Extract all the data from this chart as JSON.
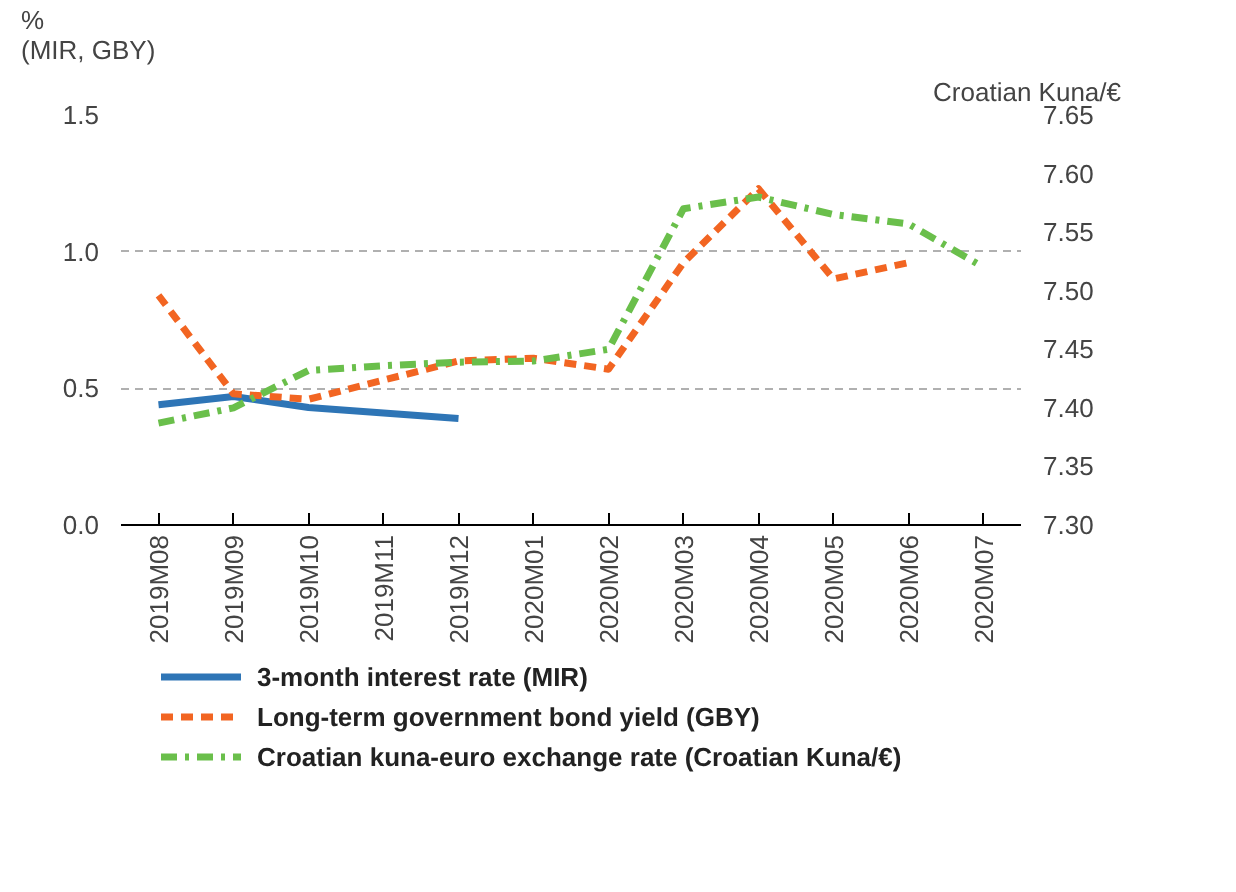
{
  "chart_data": {
    "type": "line",
    "ylabel": "%\n(MIR, GBY)",
    "y2label": "Croatian Kuna/€",
    "categories": [
      "2019M08",
      "2019M09",
      "2019M10",
      "2019M11",
      "2019M12",
      "2020M01",
      "2020M02",
      "2020M03",
      "2020M04",
      "2020M05",
      "2020M06",
      "2020M07"
    ],
    "series": [
      {
        "name": "3-month interest rate (MIR)",
        "color": "#2e75b6",
        "line_style": "solid",
        "values": [
          0.44,
          0.47,
          0.43,
          0.41,
          0.39,
          null,
          null,
          null,
          null,
          null,
          null,
          null
        ]
      },
      {
        "name": "Long-term government bond yield (GBY)",
        "color": "#f26522",
        "line_style": "dashed",
        "values": [
          0.84,
          0.48,
          0.46,
          0.53,
          0.6,
          0.61,
          0.57,
          0.96,
          1.23,
          0.9,
          0.96,
          null
        ]
      },
      {
        "name": "Croatian kuna-euro exchange rate (Croatian Kuna/€)",
        "color": "#6abf4b",
        "line_style": "dashdot",
        "axis": "y2",
        "values": [
          7.387,
          7.4,
          7.432,
          7.436,
          7.439,
          7.44,
          7.45,
          7.57,
          7.58,
          7.565,
          7.557,
          7.52
        ]
      }
    ],
    "ylim": [
      0,
      1.5
    ],
    "yticks": [
      {
        "value": 0,
        "label": "0.0"
      },
      {
        "value": 0.5,
        "label": "0.5"
      },
      {
        "value": 1,
        "label": "1.0"
      },
      {
        "value": 1.5,
        "label": "1.5"
      }
    ],
    "y2lim": [
      7.3,
      7.65
    ],
    "y2ticks": [
      {
        "value": 7.3,
        "label": "7.30"
      },
      {
        "value": 7.35,
        "label": "7.35"
      },
      {
        "value": 7.4,
        "label": "7.40"
      },
      {
        "value": 7.45,
        "label": "7.45"
      },
      {
        "value": 7.5,
        "label": "7.50"
      },
      {
        "value": 7.55,
        "label": "7.55"
      },
      {
        "value": 7.6,
        "label": "7.60"
      },
      {
        "value": 7.65,
        "label": "7.65"
      }
    ],
    "grid": "y",
    "legend": "bottom",
    "marker": "none"
  }
}
